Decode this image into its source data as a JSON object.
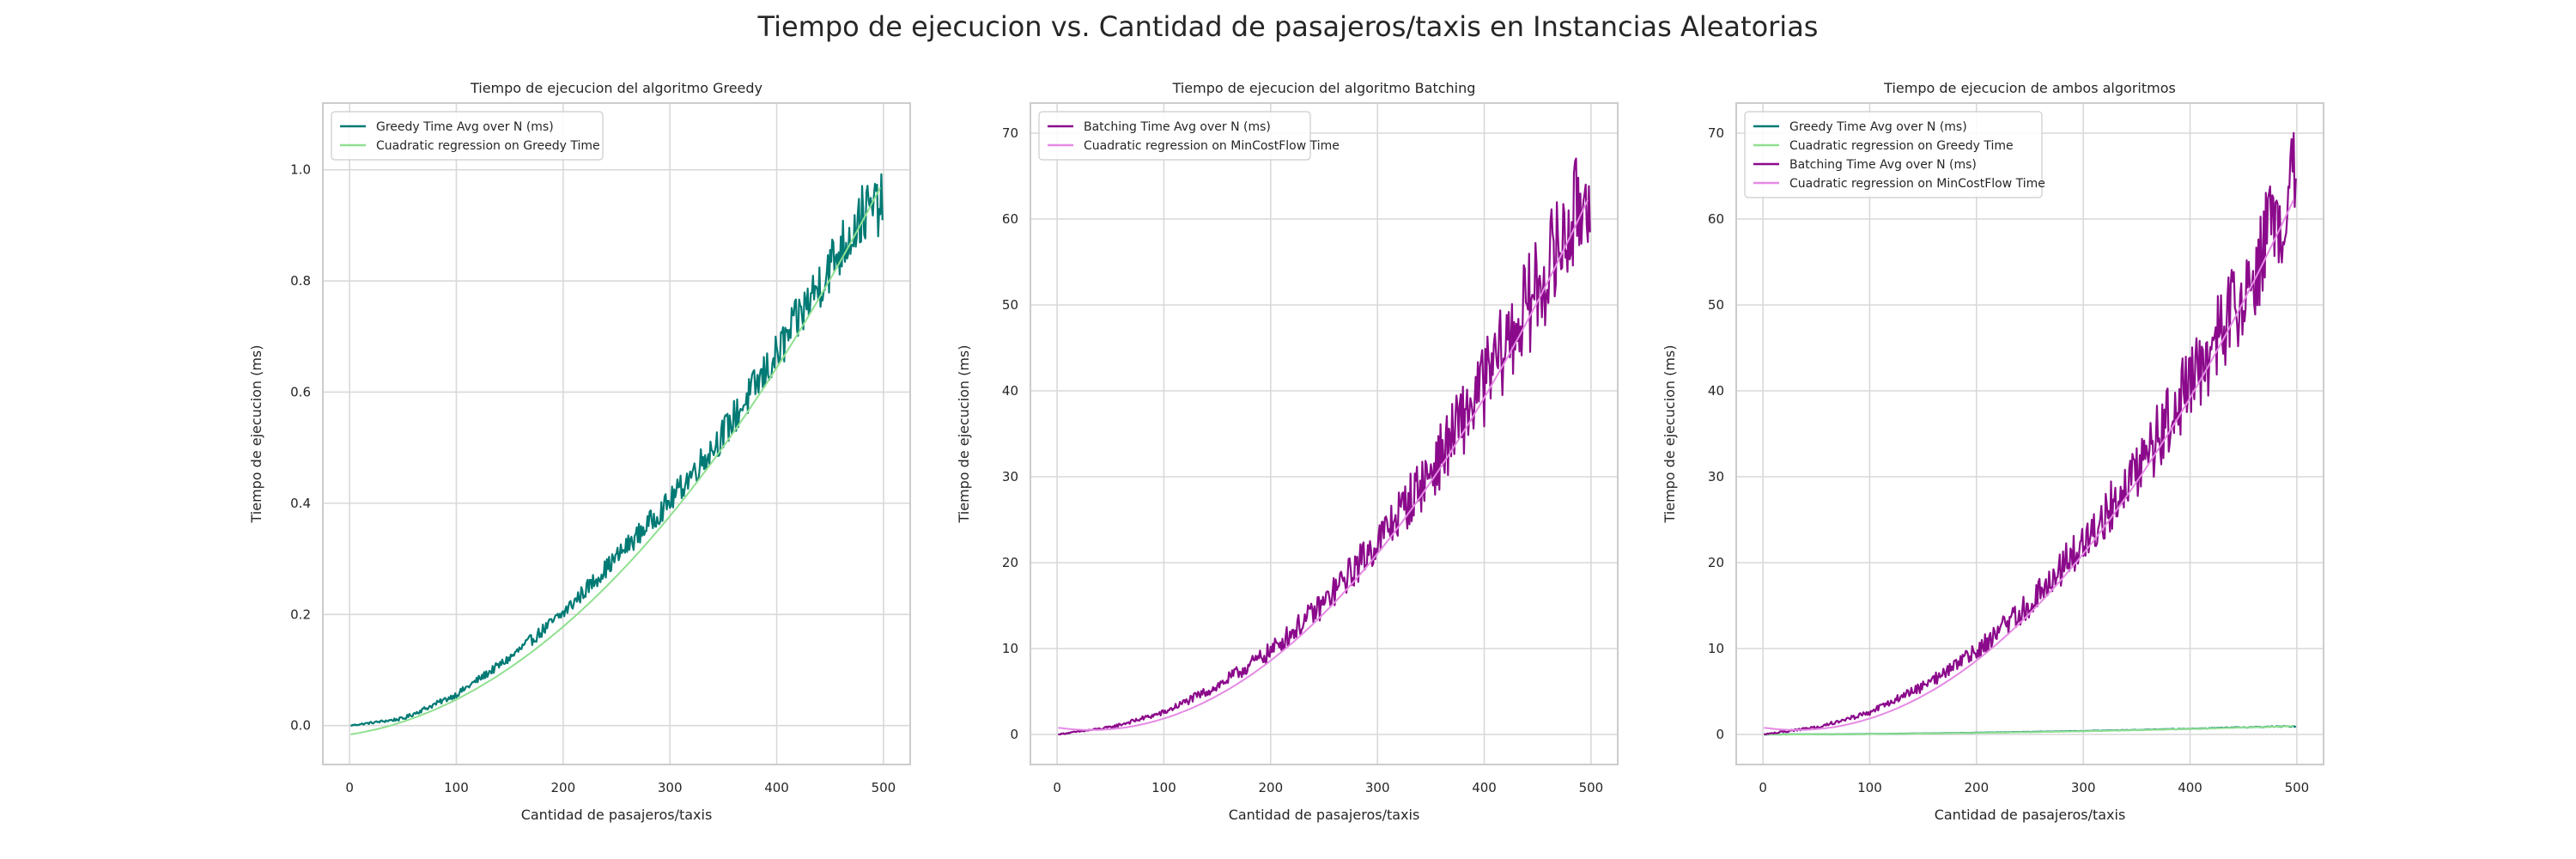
{
  "figure_title": "Tiempo de ejecucion vs. Cantidad de pasajeros/taxis en Instancias Aleatorias",
  "colors": {
    "greedy_line": "#007a74",
    "greedy_fit": "#90e090",
    "batching_line": "#8b0a8b",
    "batching_fit": "#e58ae5",
    "grid": "#d9d9d9",
    "axes_edge": "#cccccc"
  },
  "chart_data": [
    {
      "type": "line",
      "title": "Tiempo de ejecucion del algoritmo Greedy",
      "xlabel": "Cantidad de pasajeros/taxis",
      "ylabel": "Tiempo de ejecucion (ms)",
      "xlim": [
        -25,
        525
      ],
      "ylim": [
        -0.07,
        1.12
      ],
      "xticks": [
        0,
        100,
        200,
        300,
        400,
        500
      ],
      "yticks": [
        0.0,
        0.2,
        0.4,
        0.6,
        0.8,
        1.0
      ],
      "ytick_labels": [
        "0.0",
        "0.2",
        "0.4",
        "0.6",
        "0.8",
        "1.0"
      ],
      "grid": true,
      "legend": "upper-left",
      "series": [
        {
          "name": "Greedy Time Avg over N (ms)",
          "kind": "noisy",
          "color_key": "greedy_line",
          "x": [
            1,
            50,
            100,
            150,
            200,
            250,
            300,
            350,
            400,
            450,
            480,
            499
          ],
          "trend": [
            0.0,
            0.012,
            0.055,
            0.12,
            0.2,
            0.3,
            0.4,
            0.52,
            0.66,
            0.82,
            0.91,
            0.93
          ],
          "noise": [
            0.001,
            0.003,
            0.005,
            0.008,
            0.012,
            0.016,
            0.02,
            0.028,
            0.035,
            0.045,
            0.05,
            0.05
          ]
        },
        {
          "name": "Cuadratic regression on Greedy Time",
          "kind": "quadratic",
          "color_key": "greedy_fit",
          "coef": [
            -0.016,
            0.00029,
            3.4e-06
          ],
          "xrange": [
            1,
            499
          ]
        }
      ]
    },
    {
      "type": "line",
      "title": "Tiempo de ejecucion del algoritmo Batching",
      "xlabel": "Cantidad de pasajeros/taxis",
      "ylabel": "Tiempo de ejecucion (ms)",
      "xlim": [
        -25,
        525
      ],
      "ylim": [
        -3.5,
        73.5
      ],
      "xticks": [
        0,
        100,
        200,
        300,
        400,
        500
      ],
      "yticks": [
        0,
        10,
        20,
        30,
        40,
        50,
        60,
        70
      ],
      "ytick_labels": [
        "0",
        "10",
        "20",
        "30",
        "40",
        "50",
        "60",
        "70"
      ],
      "grid": true,
      "legend": "upper-left",
      "series": [
        {
          "name": "Batching Time Avg over N (ms)",
          "kind": "noisy",
          "color_key": "batching_line",
          "x": [
            1,
            50,
            100,
            150,
            200,
            250,
            300,
            350,
            400,
            450,
            480,
            499
          ],
          "trend": [
            0.0,
            0.8,
            2.5,
            5.5,
            9.5,
            15.0,
            22.0,
            30.0,
            40.0,
            51.0,
            58.0,
            63.0
          ],
          "noise": [
            0.05,
            0.15,
            0.3,
            0.6,
            1.0,
            1.5,
            2.2,
            3.2,
            4.5,
            5.5,
            6.0,
            6.0
          ]
        },
        {
          "name": "Cuadratic regression on MinCostFlow Time",
          "kind": "quadratic",
          "color_key": "batching_fit",
          "coef": [
            0.8,
            -0.018,
            0.000285
          ],
          "xrange": [
            1,
            499
          ]
        }
      ]
    },
    {
      "type": "line",
      "title": "Tiempo de ejecucion de ambos algoritmos",
      "xlabel": "Cantidad de pasajeros/taxis",
      "ylabel": "Tiempo de ejecucion (ms)",
      "xlim": [
        -25,
        525
      ],
      "ylim": [
        -3.5,
        73.5
      ],
      "xticks": [
        0,
        100,
        200,
        300,
        400,
        500
      ],
      "yticks": [
        0,
        10,
        20,
        30,
        40,
        50,
        60,
        70
      ],
      "ytick_labels": [
        "0",
        "10",
        "20",
        "30",
        "40",
        "50",
        "60",
        "70"
      ],
      "grid": true,
      "legend": "upper-left",
      "series": [
        {
          "name": "Greedy Time Avg over N (ms)",
          "kind": "noisy",
          "color_key": "greedy_line",
          "x": [
            1,
            50,
            100,
            150,
            200,
            250,
            300,
            350,
            400,
            450,
            480,
            499
          ],
          "trend": [
            0.0,
            0.012,
            0.055,
            0.12,
            0.2,
            0.3,
            0.4,
            0.52,
            0.66,
            0.82,
            0.91,
            0.93
          ],
          "noise": [
            0.001,
            0.003,
            0.005,
            0.008,
            0.012,
            0.016,
            0.02,
            0.028,
            0.035,
            0.045,
            0.05,
            0.05
          ]
        },
        {
          "name": "Cuadratic regression on Greedy Time",
          "kind": "quadratic",
          "color_key": "greedy_fit",
          "coef": [
            -0.016,
            0.00029,
            3.4e-06
          ],
          "xrange": [
            1,
            499
          ]
        },
        {
          "name": "Batching Time Avg over N (ms)",
          "kind": "noisy",
          "color_key": "batching_line",
          "x": [
            1,
            50,
            100,
            150,
            200,
            250,
            300,
            350,
            400,
            450,
            480,
            499
          ],
          "trend": [
            0.0,
            0.8,
            2.5,
            5.5,
            9.5,
            15.0,
            22.0,
            30.0,
            40.0,
            51.0,
            58.0,
            63.0
          ],
          "noise": [
            0.05,
            0.15,
            0.3,
            0.6,
            1.0,
            1.5,
            2.2,
            3.2,
            4.5,
            5.5,
            6.0,
            6.0
          ]
        },
        {
          "name": "Cuadratic regression on MinCostFlow Time",
          "kind": "quadratic",
          "color_key": "batching_fit",
          "coef": [
            0.8,
            -0.018,
            0.000285
          ],
          "xrange": [
            1,
            499
          ]
        }
      ]
    }
  ]
}
